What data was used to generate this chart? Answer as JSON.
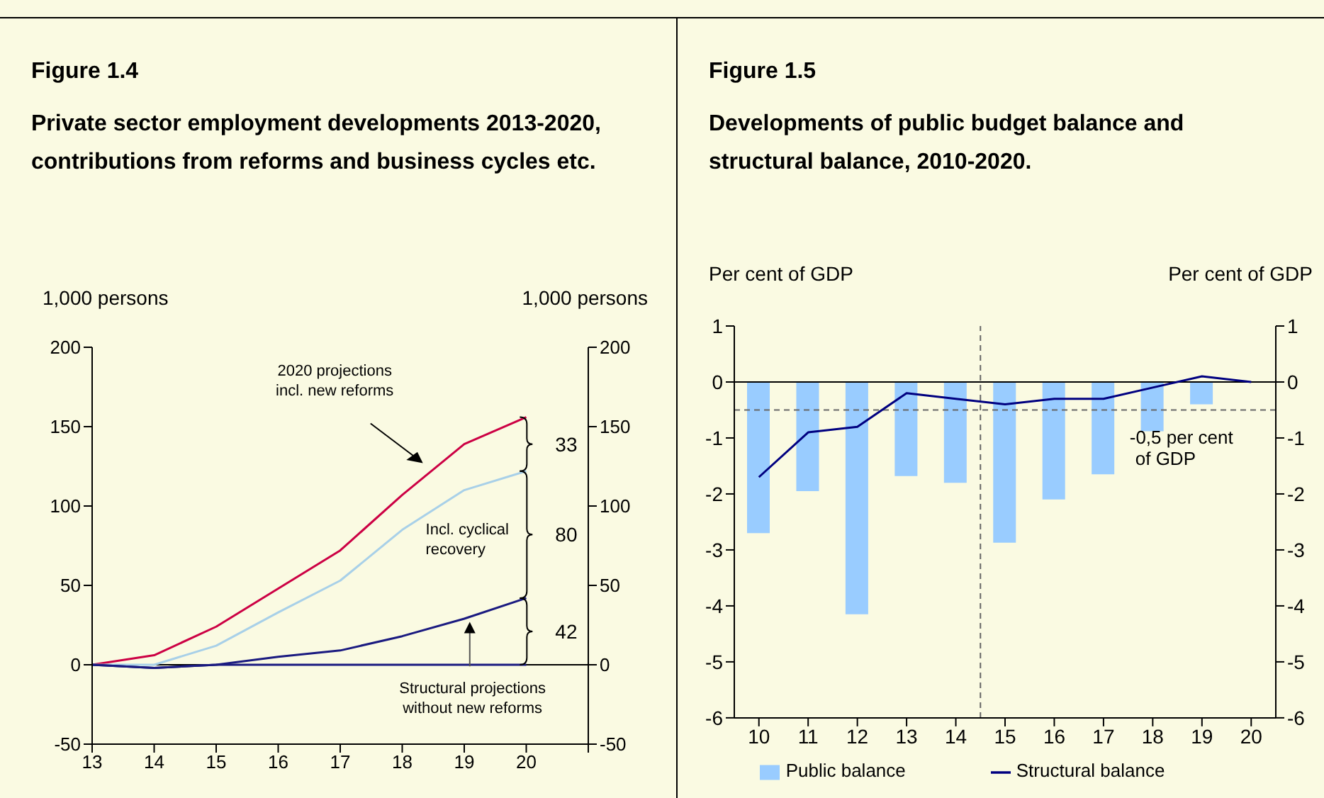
{
  "chart_data": [
    {
      "type": "line",
      "title": "Figure 1.4",
      "subtitle": "Private sector employment developments 2013-2020, contributions from reforms and business cycles etc.",
      "ylabel": "1,000 persons",
      "y2label": "1,000 persons",
      "categories": [
        "13",
        "14",
        "15",
        "16",
        "17",
        "18",
        "19",
        "20",
        null
      ],
      "series": [
        {
          "color": "#cc0044",
          "values": [
            0,
            6,
            24,
            48,
            72,
            107,
            139,
            156,
            null
          ]
        },
        {
          "color": "#a8d0e8",
          "values": [
            0,
            0,
            12,
            33,
            53,
            85,
            110,
            122,
            null
          ]
        },
        {
          "color": "#1a1a80",
          "values": [
            0,
            -2,
            0,
            5,
            9,
            18,
            29,
            42,
            null
          ]
        },
        {
          "color": "#1a1a80",
          "values": [
            0,
            -2,
            0,
            0,
            0,
            0,
            0,
            0,
            null
          ]
        }
      ],
      "ylim": [
        -50,
        200
      ],
      "yticks": [
        -50,
        0,
        50,
        100,
        150,
        200
      ],
      "y2lim": [
        -50,
        200
      ],
      "y2ticks": [
        -50,
        0,
        50,
        100,
        150,
        200
      ],
      "marker": "none",
      "annotations": [
        "2020 projections incl. new reforms",
        "Incl. cyclical recovery",
        {
          "text": "Structural projections without new reforms",
          "y": 0
        },
        "33",
        "80",
        "42"
      ]
    },
    {
      "type": "bar",
      "title": "Figure 1.5",
      "subtitle": "Developments of public budget balance and structural balance, 2010-2020.",
      "ylabel": "Per cent of GDP",
      "y2label": "Per cent of GDP",
      "x": [
        10,
        11,
        12,
        13,
        14,
        15,
        16,
        17,
        18,
        19,
        20
      ],
      "xlim": [
        9.5,
        20.5
      ],
      "xticks": [
        10,
        11,
        12,
        13,
        14,
        15,
        16,
        17,
        18,
        19,
        20
      ],
      "series": [
        {
          "name": "Public balance",
          "type": "bar",
          "color": "#99ccff",
          "values": [
            -2.7,
            -1.95,
            -4.15,
            -1.68,
            -1.8,
            -2.87,
            -2.1,
            -1.65,
            -0.88,
            -0.4,
            0
          ]
        },
        {
          "name": "Structural balance",
          "type": "line",
          "color": "#000080",
          "values": [
            -1.7,
            -0.9,
            -0.8,
            -0.2,
            -0.3,
            -0.4,
            -0.3,
            -0.3,
            -0.1,
            0.1,
            0
          ]
        }
      ],
      "ylim": [
        -6,
        1
      ],
      "yticks": [
        -6,
        -5,
        -4,
        -3,
        -2,
        -1,
        0,
        1
      ],
      "y2lim": [
        -6,
        1
      ],
      "y2ticks": [
        -6,
        -5,
        -4,
        -3,
        -2,
        -1,
        0,
        1
      ],
      "marker": "none",
      "legend": "bottom",
      "ref_lines": [
        {
          "axis": "y",
          "value": -0.5,
          "label": "-0,5 per cent of GDP",
          "line_style": "dashed",
          "color": "#666666"
        },
        {
          "axis": "x",
          "value": 14.5,
          "line_style": "dashed",
          "color": "#666666"
        }
      ]
    }
  ]
}
